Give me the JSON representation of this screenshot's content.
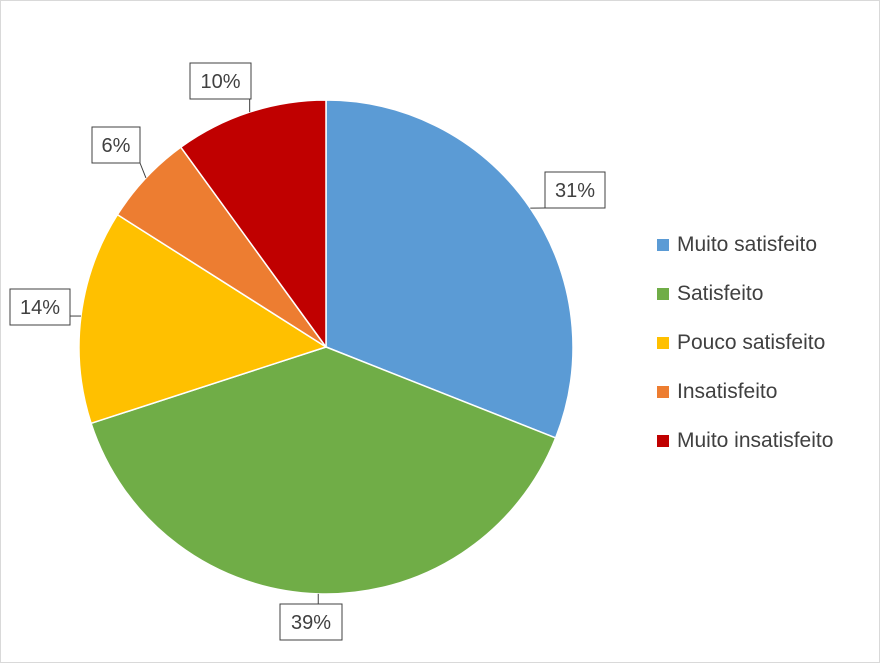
{
  "chart_data": {
    "type": "pie",
    "categories": [
      "Muito satisfeito",
      "Satisfeito",
      "Pouco satisfeito",
      "Insatisfeito",
      "Muito insatisfeito"
    ],
    "values": [
      31,
      39,
      14,
      6,
      10
    ],
    "data_labels": [
      "31%",
      "39%",
      "14%",
      "6%",
      "10%"
    ],
    "colors": [
      "#5b9bd5",
      "#70ad47",
      "#ffc000",
      "#ed7d31",
      "#c00000"
    ],
    "legend_position": "right",
    "start_angle": "12 o'clock",
    "direction": "clockwise"
  }
}
